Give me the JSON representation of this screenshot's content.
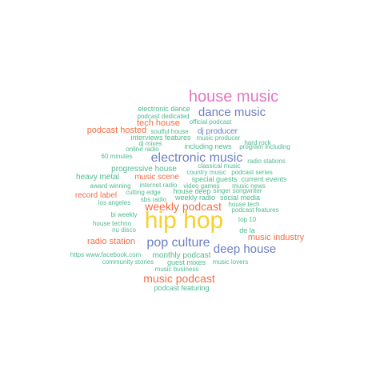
{
  "palette": {
    "pink": "#e377c2",
    "blue": "#6c7fc4",
    "orange": "#f46d43",
    "green": "#4fba8f",
    "yellow": "#f6d130"
  },
  "words": [
    {
      "text": "house music",
      "color": "pink"
    },
    {
      "text": "electronic dance",
      "color": "green"
    },
    {
      "text": "dance music",
      "color": "blue"
    },
    {
      "text": "podcast dedicated",
      "color": "green"
    },
    {
      "text": "tech house",
      "color": "orange"
    },
    {
      "text": "official podcast",
      "color": "green"
    },
    {
      "text": "podcast hosted",
      "color": "orange"
    },
    {
      "text": "soulful house",
      "color": "green"
    },
    {
      "text": "dj producer",
      "color": "blue"
    },
    {
      "text": "interviews features",
      "color": "green"
    },
    {
      "text": "music producer",
      "color": "green"
    },
    {
      "text": "dj mixes",
      "color": "green"
    },
    {
      "text": "hard rock",
      "color": "green"
    },
    {
      "text": "including news",
      "color": "green"
    },
    {
      "text": "program including",
      "color": "green"
    },
    {
      "text": "online radio",
      "color": "green"
    },
    {
      "text": "60 minutes",
      "color": "green"
    },
    {
      "text": "electronic music",
      "color": "blue"
    },
    {
      "text": "radio stations",
      "color": "green"
    },
    {
      "text": "classical music",
      "color": "green"
    },
    {
      "text": "progressive house",
      "color": "green"
    },
    {
      "text": "country music",
      "color": "green"
    },
    {
      "text": "podcast series",
      "color": "green"
    },
    {
      "text": "heavy metal",
      "color": "green"
    },
    {
      "text": "music scene",
      "color": "orange"
    },
    {
      "text": "special guests",
      "color": "green"
    },
    {
      "text": "current events",
      "color": "green"
    },
    {
      "text": "award winning",
      "color": "green"
    },
    {
      "text": "internet radio",
      "color": "green"
    },
    {
      "text": "video games",
      "color": "green"
    },
    {
      "text": "music news",
      "color": "green"
    },
    {
      "text": "cutting edge",
      "color": "green"
    },
    {
      "text": "house deep",
      "color": "green"
    },
    {
      "text": "singer songwriter",
      "color": "green"
    },
    {
      "text": "record label",
      "color": "orange"
    },
    {
      "text": "sbs radio",
      "color": "green"
    },
    {
      "text": "weekly radio",
      "color": "green"
    },
    {
      "text": "social media",
      "color": "green"
    },
    {
      "text": "los angeles",
      "color": "green"
    },
    {
      "text": "house tech",
      "color": "green"
    },
    {
      "text": "weekly podcast",
      "color": "orange"
    },
    {
      "text": "podcast features",
      "color": "green"
    },
    {
      "text": "bi weekly",
      "color": "green"
    },
    {
      "text": "hip hop",
      "color": "yellow"
    },
    {
      "text": "top 10",
      "color": "green"
    },
    {
      "text": "house techno",
      "color": "green"
    },
    {
      "text": "nu disco",
      "color": "green"
    },
    {
      "text": "de la",
      "color": "green"
    },
    {
      "text": "music industry",
      "color": "orange"
    },
    {
      "text": "radio station",
      "color": "orange"
    },
    {
      "text": "pop culture",
      "color": "blue"
    },
    {
      "text": "deep house",
      "color": "blue"
    },
    {
      "text": "https www.facebook.com",
      "color": "green"
    },
    {
      "text": "monthly podcast",
      "color": "green"
    },
    {
      "text": "community stories",
      "color": "green"
    },
    {
      "text": "guest mixes",
      "color": "green"
    },
    {
      "text": "music lovers",
      "color": "green"
    },
    {
      "text": "music business",
      "color": "green"
    },
    {
      "text": "music podcast",
      "color": "orange"
    },
    {
      "text": "podcast featuring",
      "color": "green"
    }
  ]
}
